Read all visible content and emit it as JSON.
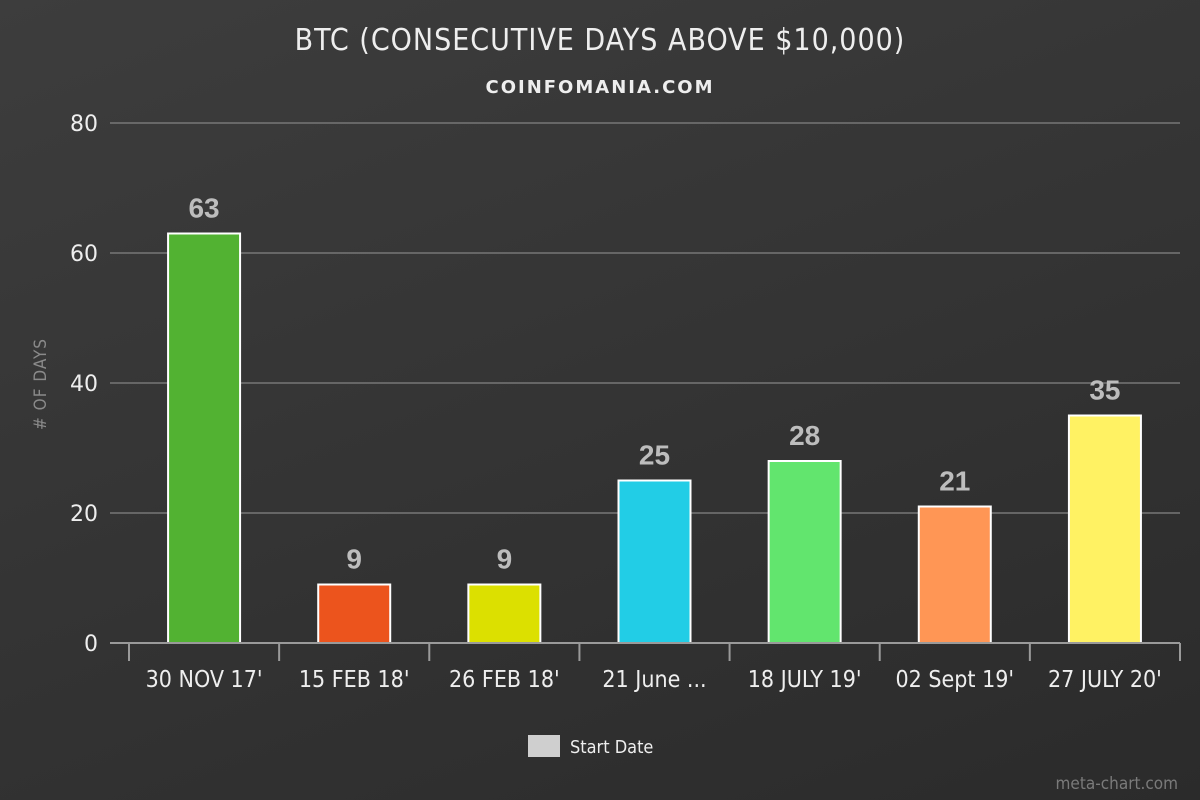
{
  "chart_data": {
    "type": "bar",
    "title": "BTC (CONSECUTIVE DAYS ABOVE $10,000)",
    "subtitle": "COINFOMANIA.COM",
    "ylabel": "# OF DAYS",
    "xlabel": "",
    "ylim": [
      0,
      80
    ],
    "yticks": [
      0,
      20,
      40,
      60,
      80
    ],
    "grid": true,
    "legend_placement": "bottom-center",
    "categories": [
      "30 NOV 17'",
      "15 FEB 18'",
      "26 FEB 18'",
      "21 June ...",
      "18 JULY 19'",
      "02 Sept 19'",
      "27 JULY 20'"
    ],
    "values": [
      63,
      9,
      9,
      25,
      28,
      21,
      35
    ],
    "colors": [
      "#52b232",
      "#ec541d",
      "#dce000",
      "#22cde6",
      "#62e56e",
      "#ff9655",
      "#fff263"
    ],
    "series": [
      {
        "name": "Start Date",
        "values": [
          63,
          9,
          9,
          25,
          28,
          21,
          35
        ]
      }
    ],
    "legend_color": "#cfcfcf",
    "credit": "meta-chart.com"
  }
}
